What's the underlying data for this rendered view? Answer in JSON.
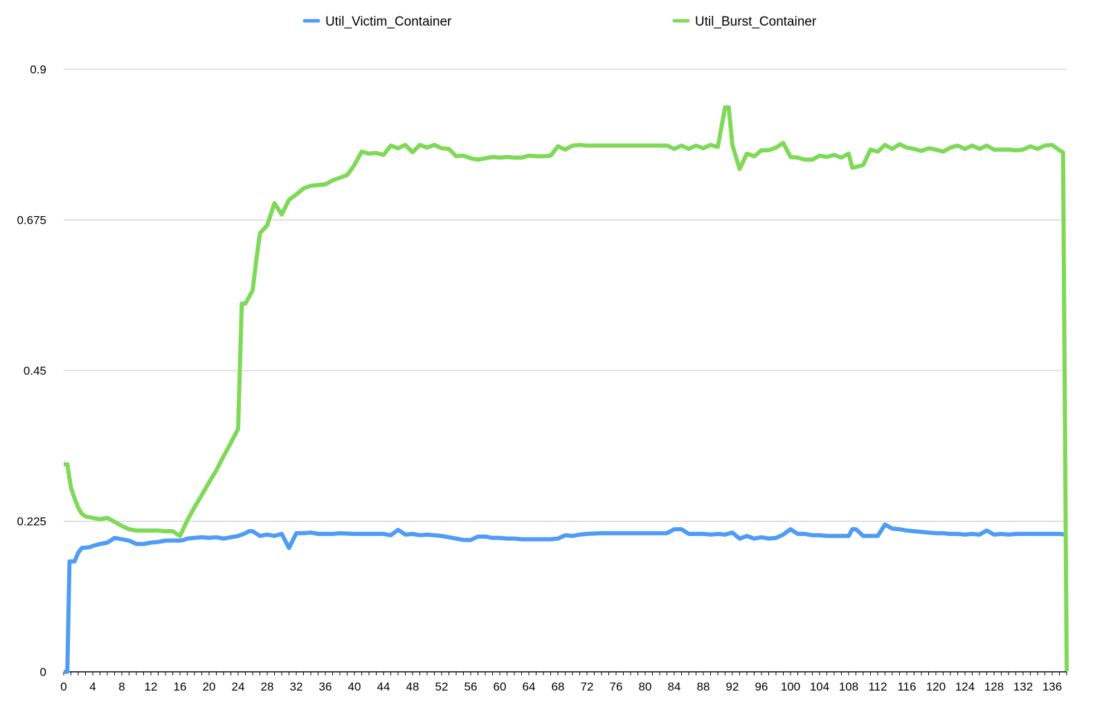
{
  "chart_data": {
    "type": "line",
    "title": "",
    "xlabel": "",
    "ylabel": "",
    "xlim": [
      0,
      138
    ],
    "ylim": [
      0,
      0.9
    ],
    "x_ticks": [
      "0",
      "4",
      "8",
      "12",
      "16",
      "20",
      "24",
      "28",
      "32",
      "36",
      "40",
      "44",
      "48",
      "52",
      "56",
      "60",
      "64",
      "68",
      "72",
      "76",
      "80",
      "84",
      "88",
      "92",
      "96",
      "100",
      "104",
      "108",
      "112",
      "116",
      "120",
      "124",
      "128",
      "132",
      "136"
    ],
    "y_ticks": [
      "0",
      "0.225",
      "0.45",
      "0.675",
      "0.9"
    ],
    "grid": "horizontal",
    "legend_position": "top",
    "series": [
      {
        "name": "Util_Victim_Container",
        "color": "#4e9cf5",
        "points": [
          [
            0,
            0
          ],
          [
            0.5,
            0
          ],
          [
            0.8,
            0.165
          ],
          [
            1.5,
            0.165
          ],
          [
            2,
            0.178
          ],
          [
            2.5,
            0.185
          ],
          [
            3.5,
            0.186
          ],
          [
            4,
            0.188
          ],
          [
            5,
            0.191
          ],
          [
            6,
            0.193
          ],
          [
            7,
            0.2
          ],
          [
            8,
            0.198
          ],
          [
            9,
            0.196
          ],
          [
            10,
            0.191
          ],
          [
            11,
            0.191
          ],
          [
            12,
            0.193
          ],
          [
            13,
            0.194
          ],
          [
            14,
            0.196
          ],
          [
            15,
            0.196
          ],
          [
            16,
            0.196
          ],
          [
            16.5,
            0.197
          ],
          [
            17,
            0.199
          ],
          [
            18,
            0.2
          ],
          [
            19,
            0.201
          ],
          [
            20,
            0.2
          ],
          [
            21,
            0.201
          ],
          [
            22,
            0.199
          ],
          [
            23,
            0.201
          ],
          [
            24,
            0.203
          ],
          [
            25,
            0.207
          ],
          [
            25.5,
            0.21
          ],
          [
            26,
            0.21
          ],
          [
            27,
            0.203
          ],
          [
            28,
            0.205
          ],
          [
            29,
            0.203
          ],
          [
            30,
            0.206
          ],
          [
            31,
            0.185
          ],
          [
            32,
            0.207
          ],
          [
            33,
            0.207
          ],
          [
            34,
            0.208
          ],
          [
            35,
            0.206
          ],
          [
            37,
            0.206
          ],
          [
            38,
            0.207
          ],
          [
            40,
            0.206
          ],
          [
            42,
            0.206
          ],
          [
            44,
            0.206
          ],
          [
            45,
            0.204
          ],
          [
            46,
            0.212
          ],
          [
            47,
            0.205
          ],
          [
            48,
            0.206
          ],
          [
            49,
            0.204
          ],
          [
            50,
            0.205
          ],
          [
            51,
            0.204
          ],
          [
            52,
            0.203
          ],
          [
            53,
            0.201
          ],
          [
            54,
            0.199
          ],
          [
            55,
            0.197
          ],
          [
            56,
            0.197
          ],
          [
            57,
            0.202
          ],
          [
            58,
            0.202
          ],
          [
            59,
            0.2
          ],
          [
            60,
            0.2
          ],
          [
            61,
            0.199
          ],
          [
            62,
            0.199
          ],
          [
            63,
            0.198
          ],
          [
            64,
            0.198
          ],
          [
            65,
            0.198
          ],
          [
            66,
            0.198
          ],
          [
            67,
            0.198
          ],
          [
            68,
            0.199
          ],
          [
            69,
            0.204
          ],
          [
            70,
            0.203
          ],
          [
            71,
            0.205
          ],
          [
            72,
            0.206
          ],
          [
            74,
            0.207
          ],
          [
            76,
            0.207
          ],
          [
            78,
            0.207
          ],
          [
            80,
            0.207
          ],
          [
            82,
            0.207
          ],
          [
            83,
            0.207
          ],
          [
            84,
            0.213
          ],
          [
            85,
            0.213
          ],
          [
            86,
            0.206
          ],
          [
            88,
            0.206
          ],
          [
            89,
            0.205
          ],
          [
            90,
            0.206
          ],
          [
            91,
            0.205
          ],
          [
            92,
            0.208
          ],
          [
            93,
            0.199
          ],
          [
            94,
            0.203
          ],
          [
            95,
            0.199
          ],
          [
            96,
            0.201
          ],
          [
            97,
            0.199
          ],
          [
            98,
            0.2
          ],
          [
            99,
            0.205
          ],
          [
            100,
            0.213
          ],
          [
            101,
            0.206
          ],
          [
            102,
            0.206
          ],
          [
            103,
            0.204
          ],
          [
            104,
            0.204
          ],
          [
            105,
            0.203
          ],
          [
            106,
            0.203
          ],
          [
            107,
            0.203
          ],
          [
            108,
            0.203
          ],
          [
            108.5,
            0.213
          ],
          [
            109,
            0.213
          ],
          [
            110,
            0.203
          ],
          [
            111,
            0.203
          ],
          [
            112,
            0.203
          ],
          [
            113,
            0.22
          ],
          [
            114,
            0.214
          ],
          [
            115,
            0.213
          ],
          [
            116,
            0.211
          ],
          [
            117,
            0.21
          ],
          [
            118,
            0.209
          ],
          [
            119,
            0.208
          ],
          [
            120,
            0.207
          ],
          [
            121,
            0.207
          ],
          [
            122,
            0.206
          ],
          [
            123,
            0.206
          ],
          [
            124,
            0.205
          ],
          [
            125,
            0.206
          ],
          [
            126,
            0.205
          ],
          [
            127,
            0.211
          ],
          [
            128,
            0.205
          ],
          [
            129,
            0.206
          ],
          [
            130,
            0.205
          ],
          [
            131,
            0.206
          ],
          [
            132,
            0.206
          ],
          [
            133,
            0.206
          ],
          [
            134,
            0.206
          ],
          [
            135,
            0.206
          ],
          [
            136,
            0.206
          ],
          [
            137,
            0.206
          ],
          [
            138,
            0.205
          ]
        ]
      },
      {
        "name": "Util_Burst_Container",
        "color": "#7ed957",
        "points": [
          [
            0,
            0.31
          ],
          [
            0.5,
            0.31
          ],
          [
            1,
            0.275
          ],
          [
            1.5,
            0.259
          ],
          [
            2,
            0.245
          ],
          [
            2.5,
            0.236
          ],
          [
            3,
            0.232
          ],
          [
            4,
            0.23
          ],
          [
            5,
            0.228
          ],
          [
            6,
            0.23
          ],
          [
            7,
            0.224
          ],
          [
            8,
            0.218
          ],
          [
            9,
            0.213
          ],
          [
            10,
            0.211
          ],
          [
            12,
            0.211
          ],
          [
            13,
            0.211
          ],
          [
            14,
            0.21
          ],
          [
            15,
            0.21
          ],
          [
            16,
            0.203
          ],
          [
            17,
            0.226
          ],
          [
            18,
            0.246
          ],
          [
            19,
            0.264
          ],
          [
            20,
            0.283
          ],
          [
            21,
            0.301
          ],
          [
            22,
            0.322
          ],
          [
            23,
            0.342
          ],
          [
            24,
            0.363
          ],
          [
            24.5,
            0.55
          ],
          [
            25,
            0.55
          ],
          [
            26,
            0.57
          ],
          [
            26.5,
            0.615
          ],
          [
            27,
            0.655
          ],
          [
            28,
            0.667
          ],
          [
            29,
            0.7
          ],
          [
            30,
            0.683
          ],
          [
            31,
            0.705
          ],
          [
            32,
            0.713
          ],
          [
            33,
            0.722
          ],
          [
            34,
            0.726
          ],
          [
            35,
            0.727
          ],
          [
            36,
            0.728
          ],
          [
            37,
            0.734
          ],
          [
            38,
            0.738
          ],
          [
            39,
            0.742
          ],
          [
            40,
            0.757
          ],
          [
            41,
            0.777
          ],
          [
            42,
            0.774
          ],
          [
            43,
            0.775
          ],
          [
            44,
            0.772
          ],
          [
            45,
            0.786
          ],
          [
            46,
            0.782
          ],
          [
            47,
            0.787
          ],
          [
            48,
            0.776
          ],
          [
            49,
            0.787
          ],
          [
            50,
            0.783
          ],
          [
            51,
            0.787
          ],
          [
            52,
            0.782
          ],
          [
            53,
            0.781
          ],
          [
            54,
            0.77
          ],
          [
            55,
            0.771
          ],
          [
            56,
            0.767
          ],
          [
            57,
            0.765
          ],
          [
            58,
            0.767
          ],
          [
            59,
            0.769
          ],
          [
            60,
            0.768
          ],
          [
            61,
            0.769
          ],
          [
            62,
            0.768
          ],
          [
            63,
            0.768
          ],
          [
            64,
            0.771
          ],
          [
            65,
            0.77
          ],
          [
            66,
            0.77
          ],
          [
            67,
            0.771
          ],
          [
            68,
            0.785
          ],
          [
            69,
            0.78
          ],
          [
            70,
            0.786
          ],
          [
            71,
            0.787
          ],
          [
            72,
            0.786
          ],
          [
            73,
            0.786
          ],
          [
            75,
            0.786
          ],
          [
            77,
            0.786
          ],
          [
            79,
            0.786
          ],
          [
            81,
            0.786
          ],
          [
            83,
            0.786
          ],
          [
            84,
            0.781
          ],
          [
            85,
            0.786
          ],
          [
            86,
            0.781
          ],
          [
            87,
            0.786
          ],
          [
            88,
            0.782
          ],
          [
            89,
            0.787
          ],
          [
            90,
            0.784
          ],
          [
            91,
            0.843
          ],
          [
            91.5,
            0.843
          ],
          [
            92,
            0.787
          ],
          [
            93,
            0.751
          ],
          [
            94,
            0.774
          ],
          [
            95,
            0.77
          ],
          [
            96,
            0.779
          ],
          [
            97,
            0.779
          ],
          [
            98,
            0.783
          ],
          [
            99,
            0.79
          ],
          [
            100,
            0.769
          ],
          [
            101,
            0.768
          ],
          [
            102,
            0.765
          ],
          [
            103,
            0.765
          ],
          [
            104,
            0.771
          ],
          [
            105,
            0.769
          ],
          [
            106,
            0.772
          ],
          [
            107,
            0.768
          ],
          [
            108,
            0.774
          ],
          [
            108.5,
            0.753
          ],
          [
            109,
            0.754
          ],
          [
            110,
            0.757
          ],
          [
            111,
            0.78
          ],
          [
            112,
            0.777
          ],
          [
            113,
            0.787
          ],
          [
            114,
            0.781
          ],
          [
            115,
            0.788
          ],
          [
            116,
            0.783
          ],
          [
            117,
            0.781
          ],
          [
            118,
            0.778
          ],
          [
            119,
            0.782
          ],
          [
            120,
            0.78
          ],
          [
            121,
            0.777
          ],
          [
            122,
            0.783
          ],
          [
            123,
            0.786
          ],
          [
            124,
            0.781
          ],
          [
            125,
            0.786
          ],
          [
            126,
            0.781
          ],
          [
            127,
            0.786
          ],
          [
            128,
            0.78
          ],
          [
            129,
            0.78
          ],
          [
            130,
            0.78
          ],
          [
            131,
            0.779
          ],
          [
            132,
            0.78
          ],
          [
            133,
            0.785
          ],
          [
            134,
            0.781
          ],
          [
            135,
            0.786
          ],
          [
            136,
            0.787
          ],
          [
            137,
            0.779
          ],
          [
            137.5,
            0.776
          ],
          [
            138,
            0.001
          ]
        ]
      }
    ]
  }
}
